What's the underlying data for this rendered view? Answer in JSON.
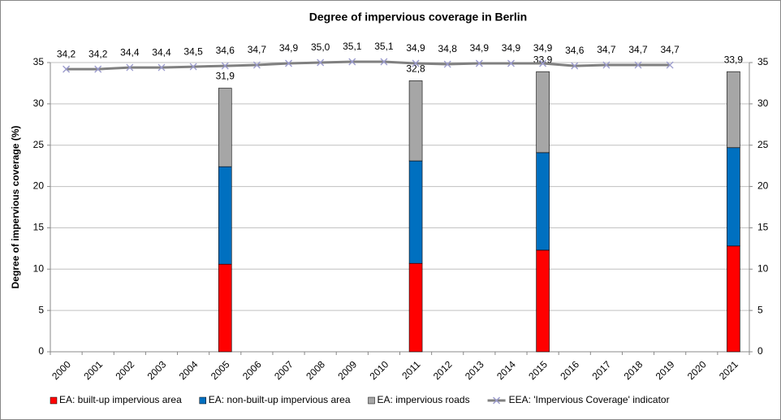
{
  "chart_data": {
    "type": "bar-line",
    "title": "Degree of impervious coverage in Berlin",
    "y_label": "Degree of impervious coverage (%)",
    "categories": [
      "2000",
      "2001",
      "2002",
      "2003",
      "2004",
      "2005",
      "2006",
      "2007",
      "2008",
      "2009",
      "2010",
      "2011",
      "2012",
      "2013",
      "2014",
      "2015",
      "2016",
      "2017",
      "2018",
      "2019",
      "2020",
      "2021"
    ],
    "series": [
      {
        "name": "EA: built-up impervious area",
        "type": "bar",
        "color": "#ff0000",
        "values": [
          null,
          null,
          null,
          null,
          null,
          10.6,
          null,
          null,
          null,
          null,
          null,
          10.7,
          null,
          null,
          null,
          12.3,
          null,
          null,
          null,
          null,
          null,
          12.8
        ]
      },
      {
        "name": "EA: non-built-up impervious area",
        "type": "bar",
        "color": "#0070c0",
        "values": [
          null,
          null,
          null,
          null,
          null,
          11.8,
          null,
          null,
          null,
          null,
          null,
          12.4,
          null,
          null,
          null,
          11.8,
          null,
          null,
          null,
          null,
          null,
          11.9
        ]
      },
      {
        "name": "EA: impervious roads",
        "type": "bar",
        "color": "#a6a6a6",
        "values": [
          null,
          null,
          null,
          null,
          null,
          9.5,
          null,
          null,
          null,
          null,
          null,
          9.7,
          null,
          null,
          null,
          9.8,
          null,
          null,
          null,
          null,
          null,
          9.2
        ]
      },
      {
        "name": "EEA: 'Impervious Coverage' indicator",
        "type": "line",
        "color": "#808080",
        "marker_color": "#9999cc",
        "values": [
          34.2,
          34.2,
          34.4,
          34.4,
          34.5,
          34.6,
          34.7,
          34.9,
          35.0,
          35.1,
          35.1,
          34.9,
          34.8,
          34.9,
          34.9,
          34.9,
          34.6,
          34.7,
          34.7,
          34.7,
          null,
          null
        ],
        "value_labels": [
          "34,2",
          "34,2",
          "34,4",
          "34,4",
          "34,5",
          "34,6",
          "34,7",
          "34,9",
          "35,0",
          "35,1",
          "35,1",
          "34,9",
          "34,8",
          "34,9",
          "34,9",
          "34,9",
          "34,6",
          "34,7",
          "34,7",
          "34,7",
          null,
          null
        ]
      }
    ],
    "bar_totals": [
      null,
      null,
      null,
      null,
      null,
      31.9,
      null,
      null,
      null,
      null,
      null,
      32.8,
      null,
      null,
      null,
      33.9,
      null,
      null,
      null,
      null,
      null,
      33.9
    ],
    "bar_total_labels": [
      null,
      null,
      null,
      null,
      null,
      "31,9",
      null,
      null,
      null,
      null,
      null,
      "32,8",
      null,
      null,
      null,
      "33,9",
      null,
      null,
      null,
      null,
      null,
      "33,9"
    ],
    "ylim": [
      0,
      35
    ],
    "yticks": [
      0,
      5,
      10,
      15,
      20,
      25,
      30,
      35
    ],
    "y2lim": [
      0,
      35
    ],
    "y2ticks": [
      0,
      5,
      10,
      15,
      20,
      25,
      30,
      35
    ],
    "grid": true,
    "legend": "bottom"
  }
}
